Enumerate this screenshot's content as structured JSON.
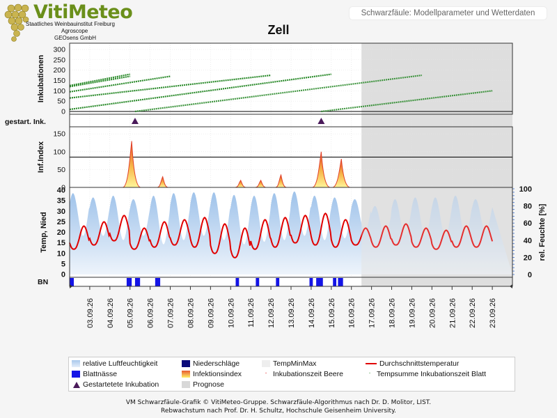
{
  "header": {
    "brand": "VitiMeteo",
    "institute": "Staatliches Weinbauinstitut Freiburg",
    "partner1": "Agroscope",
    "partner2": "GEOsens GmbH",
    "box_text": "Schwarzfäule: Modellparameter und Wetterdaten"
  },
  "chart_title": "Zell",
  "colors": {
    "humidity": "#b9d3ef",
    "temp_line": "#e00000",
    "incubation": "#2a8a2a",
    "leaf_wetness": "#1414e6",
    "forecast": "#d8d8d8",
    "marker": "#4a1a5a"
  },
  "chart_data": {
    "type": "line",
    "dates": [
      "03.09.26",
      "04.09.26",
      "05.09.26",
      "06.09.26",
      "07.09.26",
      "08.09.26",
      "09.09.26",
      "10.09.26",
      "11.09.26",
      "12.09.26",
      "13.09.26",
      "14.09.26",
      "15.09.26",
      "16.09.26",
      "17.09.26",
      "18.09.26",
      "19.09.26",
      "20.09.26",
      "21.09.26",
      "22.09.26",
      "23.09.26"
    ],
    "forecast_start": "16.09.26 12:00",
    "panels": [
      {
        "name": "incubations",
        "ylabel": "Inkubationen",
        "yticks": [
          0,
          50,
          100,
          150,
          200,
          250,
          300
        ],
        "ylim": [
          0,
          330
        ],
        "threshold": 0,
        "series": [
          {
            "start": "02.09.26 00:00",
            "end": "05.09.26 00:00",
            "from": 125,
            "to": 180
          },
          {
            "start": "02.09.26 00:00",
            "end": "05.09.26 00:00",
            "from": 120,
            "to": 170
          },
          {
            "start": "02.09.26 00:00",
            "end": "07.09.26 00:00",
            "from": 95,
            "to": 170
          },
          {
            "start": "02.09.26 00:00",
            "end": "12.09.26 00:00",
            "from": 65,
            "to": 175
          },
          {
            "start": "02.09.26 00:00",
            "end": "15.09.26 00:00",
            "from": 10,
            "to": 180
          },
          {
            "start": "05.09.26 06:00",
            "end": "19.09.26 12:00",
            "from": 0,
            "to": 175
          },
          {
            "start": "14.09.26 12:00",
            "end": "23.09.26 00:00",
            "from": 0,
            "to": 100
          }
        ]
      },
      {
        "name": "started_incubations",
        "ylabel": "gestart. Ink.",
        "markers": [
          "05.09.26 06:00",
          "14.09.26 12:00"
        ]
      },
      {
        "name": "infection_index",
        "ylabel": "Inf.Index",
        "yticks": [
          0,
          50,
          100,
          150
        ],
        "ylim": [
          0,
          170
        ],
        "threshold": 85,
        "peaks": [
          {
            "time": "05.09.26 02:00",
            "value": 130
          },
          {
            "time": "06.09.26 15:00",
            "value": 30
          },
          {
            "time": "10.09.26 12:00",
            "value": 20
          },
          {
            "time": "11.09.26 12:00",
            "value": 20
          },
          {
            "time": "12.09.26 12:00",
            "value": 35
          },
          {
            "time": "14.09.26 12:00",
            "value": 100
          },
          {
            "time": "15.09.26 12:00",
            "value": 80
          }
        ]
      },
      {
        "name": "weather",
        "ylabel_left": "Temp, Nied",
        "ylabel_right": "rel. Feuchte [%]",
        "yticks_left": [
          0,
          5,
          10,
          15,
          20,
          25,
          30,
          35,
          40
        ],
        "yticks_right": [
          0,
          20,
          40,
          60,
          80,
          100
        ],
        "ylim_left": [
          0,
          40
        ],
        "ylim_right": [
          0,
          100
        ],
        "temperature_daily_min": [
          12,
          14,
          16,
          12,
          13,
          14,
          13,
          10,
          8,
          12,
          13,
          15,
          14,
          13,
          14,
          13,
          14,
          13,
          12,
          13,
          13
        ],
        "temperature_daily_max": [
          23,
          25,
          28,
          22,
          25,
          26,
          27,
          24,
          22,
          26,
          27,
          28,
          29,
          26,
          22,
          23,
          24,
          22,
          21,
          23,
          23
        ],
        "humidity_daily_max": [
          95,
          90,
          92,
          88,
          92,
          95,
          96,
          96,
          93,
          92,
          95,
          97,
          92,
          90,
          88,
          80,
          88,
          90,
          90,
          92,
          88
        ],
        "humidity_daily_min": [
          45,
          45,
          40,
          45,
          35,
          40,
          45,
          40,
          35,
          38,
          40,
          45,
          40,
          42,
          50,
          45,
          45,
          45,
          45,
          45,
          50
        ]
      },
      {
        "name": "leaf_wetness",
        "ylabel": "BN",
        "periods": [
          [
            "02.09.26 00:00",
            "02.09.26 05:00"
          ],
          [
            "04.09.26 20:00",
            "05.09.26 02:00"
          ],
          [
            "05.09.26 06:00",
            "05.09.26 12:00"
          ],
          [
            "06.09.26 06:00",
            "06.09.26 12:00"
          ],
          [
            "10.09.26 06:00",
            "10.09.26 10:00"
          ],
          [
            "11.09.26 06:00",
            "11.09.26 10:00"
          ],
          [
            "12.09.26 06:00",
            "12.09.26 10:00"
          ],
          [
            "13.09.26 22:00",
            "14.09.26 02:00"
          ],
          [
            "14.09.26 06:00",
            "14.09.26 14:00"
          ],
          [
            "15.09.26 02:00",
            "15.09.26 06:00"
          ],
          [
            "15.09.26 08:00",
            "15.09.26 14:00"
          ]
        ]
      }
    ]
  },
  "legend": [
    {
      "label": "relative Luftfeuchtigkeit",
      "swatch": "humidity"
    },
    {
      "label": "Niederschläge",
      "swatch": "rain"
    },
    {
      "label": "TempMinMax",
      "swatch": "tempminmax"
    },
    {
      "label": "Durchschnittstemperatur",
      "swatch": "templine"
    },
    {
      "label": "Blattnässe",
      "swatch": "leafwet"
    },
    {
      "label": "Infektionsindex",
      "swatch": "infection"
    },
    {
      "label": "Inkubationszeit Beere",
      "swatch": "dot-red"
    },
    {
      "label": "Tempsumme Inkubationszeit Blatt",
      "swatch": "dot-green"
    },
    {
      "label": "Gestartetete Inkubation",
      "swatch": "triangle"
    },
    {
      "label": "Prognose",
      "swatch": "forecast"
    }
  ],
  "footer": {
    "line1": "VM Schwarzfäule-Grafik © VitiMeteo-Gruppe. Schwarzfäule-Algorithmus nach Dr. D. Molitor, LIST.",
    "line2": "Rebwachstum nach Prof. Dr. H. Schultz, Hochschule Geisenheim University."
  }
}
